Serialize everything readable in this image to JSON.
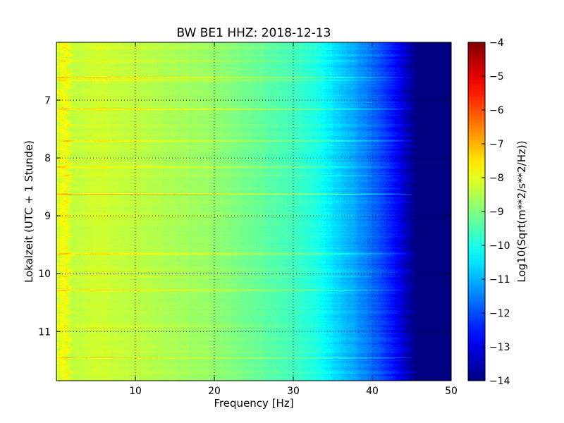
{
  "chart_data": {
    "type": "heatmap",
    "title": "BW BE1 HHZ: 2018-12-13",
    "xlabel": "Frequency [Hz]",
    "ylabel": "Lokalzeit (UTC + 1 Stunde)",
    "xlim": [
      0,
      50
    ],
    "ylim": [
      11.85,
      6.0
    ],
    "y_inverted": true,
    "x_ticks": [
      10,
      20,
      30,
      40,
      50
    ],
    "x_tick_labels": [
      "10",
      "20",
      "30",
      "40",
      "50"
    ],
    "y_ticks": [
      7,
      8,
      9,
      10,
      11
    ],
    "y_tick_labels": [
      "7",
      "8",
      "9",
      "10",
      "11"
    ],
    "grid": true,
    "colormap": "jet",
    "colorbar": {
      "label": "Log10(Sqrt(m**2/s**2/Hz))",
      "range": [
        -14,
        -4
      ],
      "ticks": [
        -4,
        -5,
        -6,
        -7,
        -8,
        -9,
        -10,
        -11,
        -12,
        -13,
        -14
      ],
      "tick_labels": [
        "−4",
        "−5",
        "−6",
        "−7",
        "−8",
        "−9",
        "−10",
        "−11",
        "−12",
        "−13",
        "−14"
      ]
    },
    "spectral_profile": {
      "frequency_hz": [
        0,
        1,
        2,
        5,
        10,
        15,
        20,
        25,
        30,
        33,
        35,
        38,
        40,
        42,
        44,
        45,
        46,
        50
      ],
      "log_amplitude": [
        -8.3,
        -7.6,
        -8.4,
        -8.2,
        -8.4,
        -8.6,
        -8.8,
        -9.2,
        -9.6,
        -10.0,
        -10.5,
        -11.2,
        -11.7,
        -12.3,
        -13.2,
        -13.8,
        -14,
        -14
      ]
    },
    "bright_bands": [
      {
        "hour": 6.08,
        "f_max": 33,
        "boost": 0.4
      },
      {
        "hour": 6.32,
        "f_max": 38,
        "boost": 0.5
      },
      {
        "hour": 6.6,
        "f_max": 45,
        "boost": 1.4
      },
      {
        "hour": 6.65,
        "f_max": 45,
        "boost": 1.0
      },
      {
        "hour": 7.15,
        "f_max": 45,
        "boost": 1.2
      },
      {
        "hour": 7.7,
        "f_max": 45,
        "boost": 1.2
      },
      {
        "hour": 8.15,
        "f_max": 45,
        "boost": 1.2
      },
      {
        "hour": 8.3,
        "f_max": 40,
        "boost": 0.5
      },
      {
        "hour": 8.62,
        "f_max": 45,
        "boost": 1.4
      },
      {
        "hour": 9.0,
        "f_max": 38,
        "boost": 0.5
      },
      {
        "hour": 9.65,
        "f_max": 45,
        "boost": 1.2
      },
      {
        "hour": 10.05,
        "f_max": 40,
        "boost": 0.5
      },
      {
        "hour": 10.28,
        "f_max": 45,
        "boost": 1.2
      },
      {
        "hour": 10.9,
        "f_max": 38,
        "boost": 0.5
      },
      {
        "hour": 11.45,
        "f_max": 45,
        "boost": 1.1
      }
    ]
  }
}
